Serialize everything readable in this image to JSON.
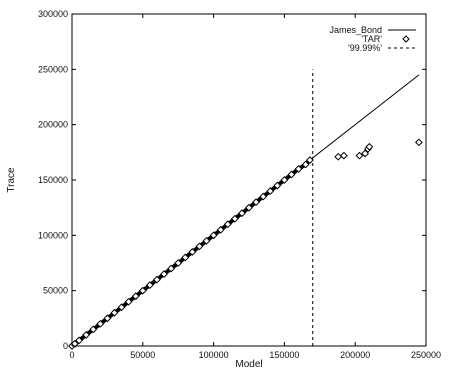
{
  "chart_data": {
    "type": "scatter",
    "xlabel": "Model",
    "ylabel": "Trace",
    "xlim": [
      0,
      250000
    ],
    "ylim": [
      0,
      300000
    ],
    "x_ticks": [
      0,
      50000,
      100000,
      150000,
      200000,
      250000
    ],
    "y_ticks": [
      0,
      50000,
      100000,
      150000,
      200000,
      250000,
      300000
    ],
    "x_tick_labels": [
      "0",
      "50000",
      "100000",
      "150000",
      "200000",
      "250000"
    ],
    "y_tick_labels": [
      "0",
      "50000",
      "100000",
      "150000",
      "200000",
      "250000",
      "300000"
    ],
    "grid": false,
    "legend_position": "top-right",
    "series": [
      {
        "name": "James_Bond",
        "style": "solid-line",
        "color": "#000000",
        "x": [
          0,
          245000
        ],
        "y": [
          0,
          245000
        ]
      },
      {
        "name": "'TAR'",
        "style": "diamond-markers",
        "color": "#000000",
        "x": [
          0,
          2000,
          5000,
          10000,
          15000,
          20000,
          25000,
          30000,
          35000,
          40000,
          45000,
          50000,
          55000,
          60000,
          65000,
          70000,
          75000,
          80000,
          85000,
          90000,
          95000,
          100000,
          105000,
          110000,
          115000,
          120000,
          125000,
          130000,
          135000,
          140000,
          145000,
          150000,
          155000,
          160000,
          165000,
          168000,
          188000,
          192000,
          203000,
          207000,
          209000,
          210000,
          245000
        ],
        "y": [
          0,
          2000,
          5000,
          10000,
          15000,
          20000,
          25000,
          30000,
          35000,
          40000,
          45000,
          50000,
          55000,
          60000,
          65000,
          70000,
          75000,
          80000,
          85000,
          90000,
          95000,
          100000,
          105000,
          110000,
          115000,
          120000,
          125000,
          130000,
          135000,
          140000,
          145000,
          150000,
          155000,
          160000,
          164000,
          168000,
          171000,
          172000,
          172000,
          174000,
          178000,
          180000,
          184000
        ]
      },
      {
        "name": "'99.99%'",
        "style": "dashed-vertical-line",
        "color": "#000000",
        "x": [
          170000,
          170000
        ],
        "y": [
          0,
          250000
        ]
      }
    ]
  }
}
